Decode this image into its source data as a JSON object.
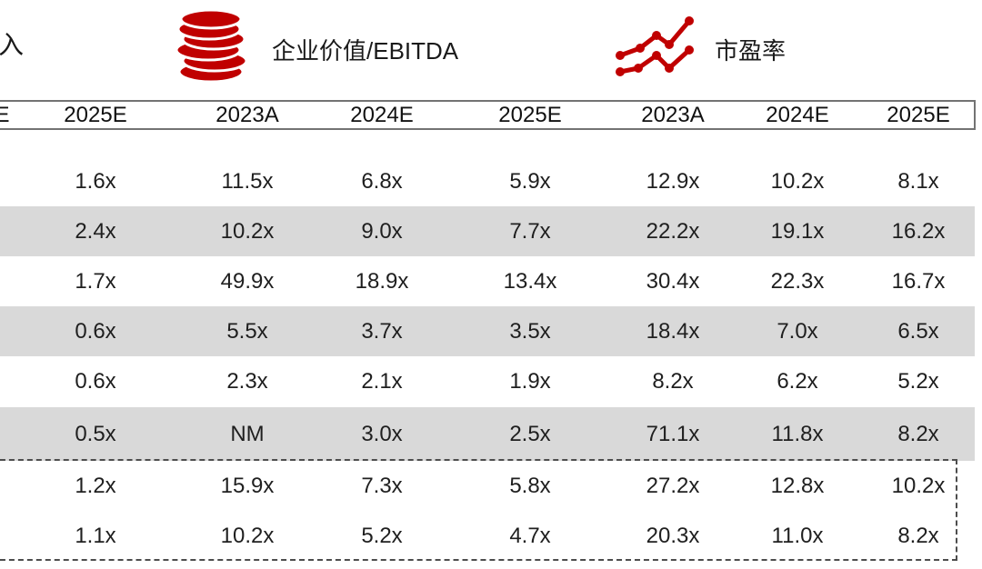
{
  "colors": {
    "accent": "#C00000",
    "shaded_row": "#D9D9D9",
    "header_line": "#737373"
  },
  "legend": {
    "partial_left_label": "入",
    "items": [
      {
        "icon": "coins-icon",
        "label": "企业价值/EBITDA"
      },
      {
        "icon": "trend-lines-icon",
        "label": "市盈率"
      }
    ]
  },
  "table": {
    "columns": [
      "E",
      "2025E",
      "2023A",
      "2024E",
      "2025E",
      "2023A",
      "2024E",
      "2025E"
    ],
    "rows": [
      {
        "shaded": false,
        "values": [
          "",
          "1.6x",
          "11.5x",
          "6.8x",
          "5.9x",
          "12.9x",
          "10.2x",
          "8.1x"
        ]
      },
      {
        "shaded": true,
        "values": [
          "",
          "2.4x",
          "10.2x",
          "9.0x",
          "7.7x",
          "22.2x",
          "19.1x",
          "16.2x"
        ]
      },
      {
        "shaded": false,
        "values": [
          "",
          "1.7x",
          "49.9x",
          "18.9x",
          "13.4x",
          "30.4x",
          "22.3x",
          "16.7x"
        ]
      },
      {
        "shaded": true,
        "values": [
          "",
          "0.6x",
          "5.5x",
          "3.7x",
          "3.5x",
          "18.4x",
          "7.0x",
          "6.5x"
        ]
      },
      {
        "shaded": false,
        "values": [
          "",
          "0.6x",
          "2.3x",
          "2.1x",
          "1.9x",
          "8.2x",
          "6.2x",
          "5.2x"
        ]
      },
      {
        "shaded": true,
        "values": [
          "",
          "0.5x",
          "NM",
          "3.0x",
          "2.5x",
          "71.1x",
          "11.8x",
          "8.2x"
        ]
      },
      {
        "shaded": false,
        "values": [
          "",
          "1.2x",
          "15.9x",
          "7.3x",
          "5.8x",
          "27.2x",
          "12.8x",
          "10.2x"
        ]
      },
      {
        "shaded": false,
        "values": [
          "",
          "1.1x",
          "10.2x",
          "5.2x",
          "4.7x",
          "20.3x",
          "11.0x",
          "8.2x"
        ]
      }
    ]
  }
}
